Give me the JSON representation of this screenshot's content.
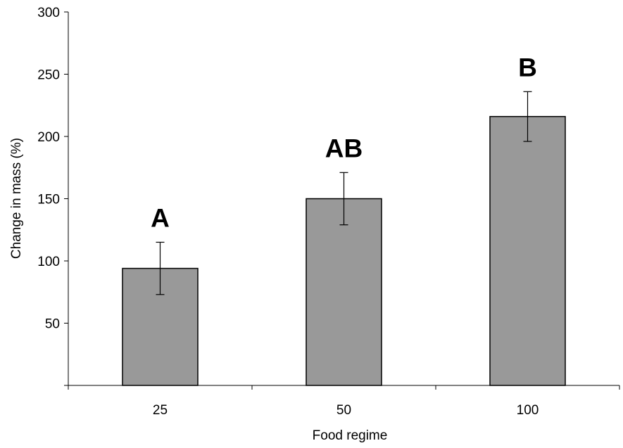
{
  "chart_data": {
    "type": "bar",
    "title": "",
    "xlabel": "Food regime",
    "ylabel": "Change in mass (%)",
    "categories": [
      "25",
      "50",
      "100"
    ],
    "values": [
      94,
      150,
      216
    ],
    "error": [
      21,
      21,
      20
    ],
    "annotations": [
      "A",
      "AB",
      "B"
    ],
    "ylim": [
      0,
      300
    ],
    "yticks": [
      "50",
      "100",
      "150",
      "200",
      "250",
      "300"
    ],
    "grid": false,
    "legend": "none",
    "bar_color": "#999999",
    "bar_outline_color": "#000000"
  }
}
